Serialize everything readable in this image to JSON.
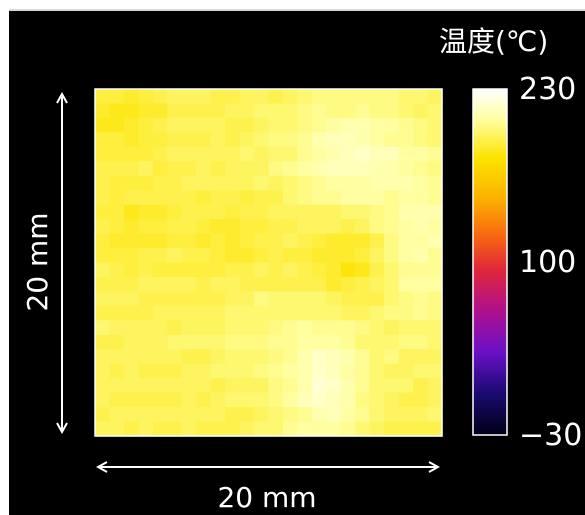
{
  "chart_data": {
    "type": "heatmap",
    "title": "",
    "colorbar": {
      "label": "温度(℃)",
      "min": -30,
      "max": 230,
      "tick_labels": [
        "230",
        "100",
        "−30"
      ],
      "tick_values": [
        230,
        100,
        -30
      ],
      "colormap": [
        "#000018",
        "#1a0a70",
        "#6a10c8",
        "#b0108c",
        "#e02838",
        "#f86a10",
        "#fbb000",
        "#fde300",
        "#ffffa0",
        "#ffffff"
      ]
    },
    "x_dimension_label": "20 mm",
    "y_dimension_label": "20 mm",
    "grid_size": [
      24,
      24
    ],
    "hot_spots": [
      {
        "x": 17.0,
        "y": 4.0,
        "sx": 3.0,
        "sy": 2.5,
        "amp": 20
      },
      {
        "x": 22.0,
        "y": 10.0,
        "sx": 2.0,
        "sy": 4.0,
        "amp": 16
      },
      {
        "x": 15.5,
        "y": 20.0,
        "sx": 2.0,
        "sy": 3.0,
        "amp": 22
      },
      {
        "x": 11.0,
        "y": 16.5,
        "sx": 2.5,
        "sy": 2.5,
        "amp": 6
      }
    ],
    "cool_spots": [
      {
        "x": 17.0,
        "y": 11.5,
        "sx": 2.0,
        "sy": 1.8,
        "amp": 12
      },
      {
        "x": 1.5,
        "y": 1.5,
        "sx": 2.0,
        "sy": 2.0,
        "amp": 10
      },
      {
        "x": 9.0,
        "y": 10.0,
        "sx": 2.5,
        "sy": 2.0,
        "amp": 7
      },
      {
        "x": 2.0,
        "y": 9.0,
        "sx": 2.0,
        "sy": 2.0,
        "amp": 8
      }
    ],
    "base_value": 194
  }
}
